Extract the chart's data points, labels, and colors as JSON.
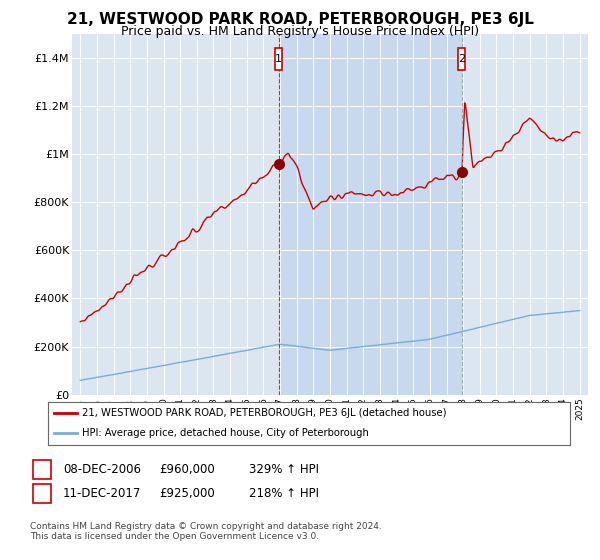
{
  "title": "21, WESTWOOD PARK ROAD, PETERBOROUGH, PE3 6JL",
  "subtitle": "Price paid vs. HM Land Registry's House Price Index (HPI)",
  "title_fontsize": 11,
  "subtitle_fontsize": 9,
  "background_color": "#ffffff",
  "plot_bg_color": "#dce6f1",
  "plot_bg_shaded": "#c8d8ee",
  "grid_color": "#ffffff",
  "legend_label_red": "21, WESTWOOD PARK ROAD, PETERBOROUGH, PE3 6JL (detached house)",
  "legend_label_blue": "HPI: Average price, detached house, City of Peterborough",
  "sale1_date": "08-DEC-2006",
  "sale1_price": "£960,000",
  "sale1_hpi": "329% ↑ HPI",
  "sale1_year": 2006.92,
  "sale1_value": 960000,
  "sale2_date": "11-DEC-2017",
  "sale2_price": "£925,000",
  "sale2_hpi": "218% ↑ HPI",
  "sale2_year": 2017.92,
  "sale2_value": 925000,
  "ylim": [
    0,
    1500000
  ],
  "xlim_left": 1994.5,
  "xlim_right": 2025.5,
  "yticks": [
    0,
    200000,
    400000,
    600000,
    800000,
    1000000,
    1200000,
    1400000
  ],
  "ytick_labels": [
    "£0",
    "£200K",
    "£400K",
    "£600K",
    "£800K",
    "£1M",
    "£1.2M",
    "£1.4M"
  ],
  "xticks": [
    1995,
    1996,
    1997,
    1998,
    1999,
    2000,
    2001,
    2002,
    2003,
    2004,
    2005,
    2006,
    2007,
    2008,
    2009,
    2010,
    2011,
    2012,
    2013,
    2014,
    2015,
    2016,
    2017,
    2018,
    2019,
    2020,
    2021,
    2022,
    2023,
    2024,
    2025
  ],
  "red_color": "#cc0000",
  "blue_color": "#7aadd4",
  "dot_color": "#8b0000",
  "marker_box_color": "#cc0000",
  "footnote": "Contains HM Land Registry data © Crown copyright and database right 2024.\nThis data is licensed under the Open Government Licence v3.0."
}
